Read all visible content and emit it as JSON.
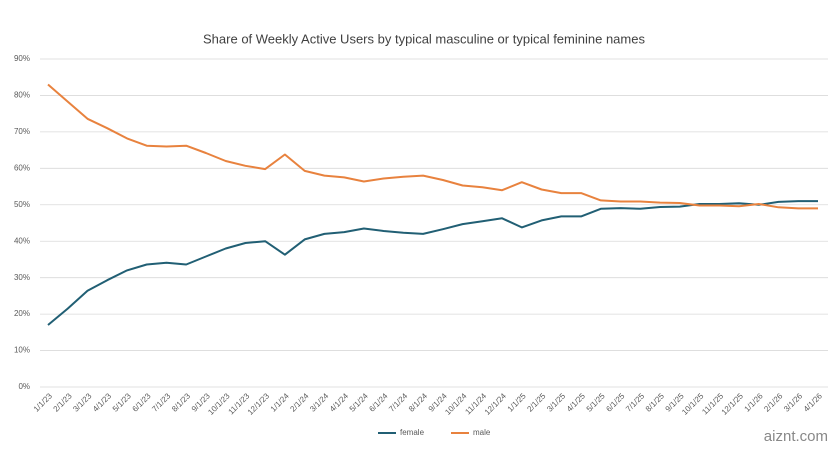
{
  "chart_data": {
    "type": "line",
    "title": "Share of Weekly Active Users by typical masculine or typical feminine names",
    "categories": [
      "1/1/23",
      "2/1/23",
      "3/1/23",
      "4/1/23",
      "5/1/23",
      "6/1/23",
      "7/1/23",
      "8/1/23",
      "9/1/23",
      "10/1/23",
      "11/1/23",
      "12/1/23",
      "1/1/24",
      "2/1/24",
      "3/1/24",
      "4/1/24",
      "5/1/24",
      "6/1/24",
      "7/1/24",
      "8/1/24",
      "9/1/24",
      "10/1/24",
      "11/1/24",
      "12/1/24",
      "1/1/25",
      "2/1/25",
      "3/1/25",
      "4/1/25",
      "5/1/25",
      "6/1/25",
      "7/1/25",
      "8/1/25",
      "9/1/25",
      "10/1/25",
      "11/1/25",
      "12/1/25",
      "1/1/26",
      "2/1/26",
      "3/1/26",
      "4/1/26"
    ],
    "series": [
      {
        "name": "female",
        "color": "#215f74",
        "values": [
          17.0,
          21.5,
          26.4,
          29.3,
          32.0,
          33.6,
          34.1,
          33.6,
          35.8,
          38.0,
          39.5,
          40.0,
          36.3,
          40.5,
          42.0,
          42.5,
          43.5,
          42.8,
          42.3,
          42.0,
          43.3,
          44.7,
          45.5,
          46.3,
          43.8,
          45.7,
          46.8,
          46.8,
          48.9,
          49.1,
          48.9,
          49.4,
          49.5,
          50.2,
          50.2,
          50.4,
          50.0,
          50.8,
          51.0,
          51.0
        ]
      },
      {
        "name": "male",
        "color": "#e8823e",
        "values": [
          83.0,
          78.3,
          73.6,
          71.0,
          68.2,
          66.2,
          66.0,
          66.2,
          64.2,
          62.0,
          60.7,
          59.8,
          63.8,
          59.3,
          58.0,
          57.5,
          56.4,
          57.2,
          57.7,
          58.0,
          56.8,
          55.3,
          54.8,
          54.0,
          56.2,
          54.2,
          53.2,
          53.2,
          51.2,
          50.9,
          50.9,
          50.6,
          50.5,
          49.8,
          49.8,
          49.6,
          50.2,
          49.3,
          49.0,
          49.0
        ]
      }
    ],
    "ylim": [
      0,
      90
    ],
    "yticks": [
      {
        "value": 0,
        "label": "0%"
      },
      {
        "value": 10,
        "label": "10%"
      },
      {
        "value": 20,
        "label": "20%"
      },
      {
        "value": 30,
        "label": "30%"
      },
      {
        "value": 40,
        "label": "40%"
      },
      {
        "value": 50,
        "label": "50%"
      },
      {
        "value": 60,
        "label": "60%"
      },
      {
        "value": 70,
        "label": "70%"
      },
      {
        "value": 80,
        "label": "80%"
      },
      {
        "value": 90,
        "label": "90%"
      }
    ],
    "grid": true,
    "legend": "bottom"
  },
  "watermark": "aiznt.com"
}
